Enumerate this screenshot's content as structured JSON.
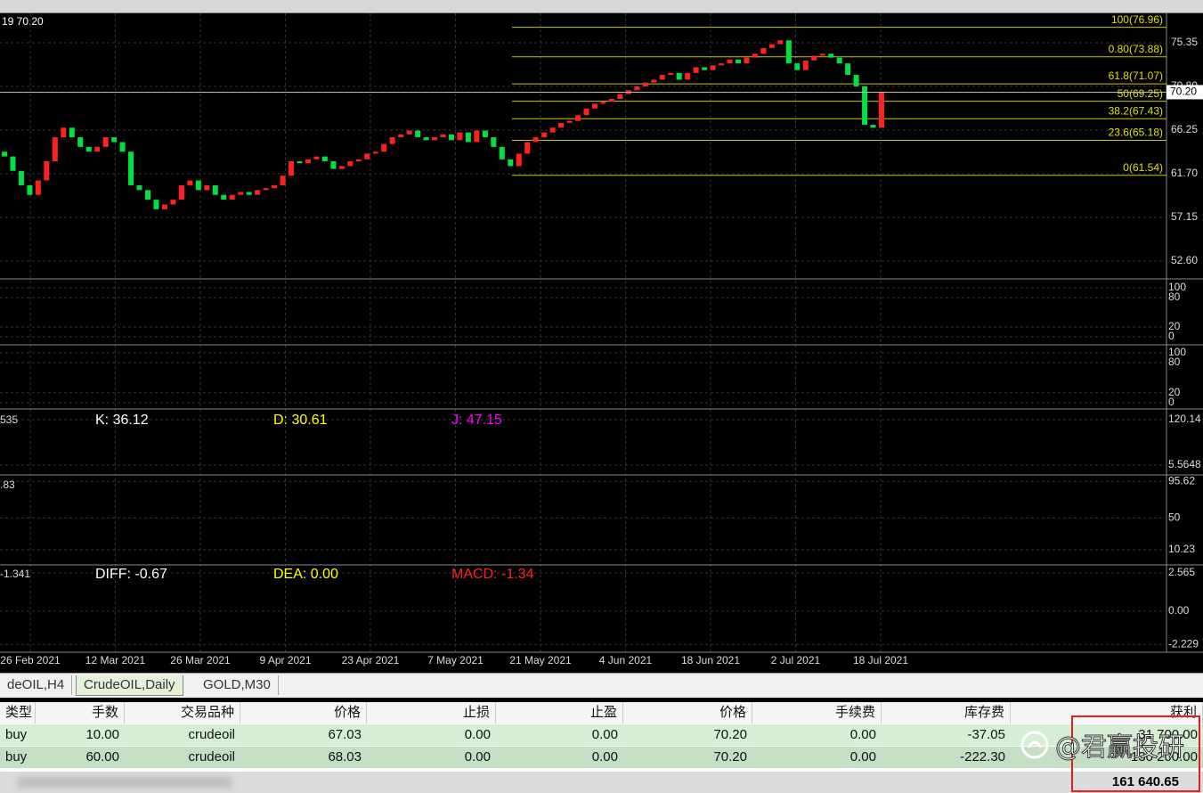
{
  "chart": {
    "corner_text": "19 70.20",
    "current_price": {
      "value": 70.2,
      "label": "70.20"
    },
    "ylim": [
      50.84,
      78.41
    ],
    "price_ticks": [
      75.35,
      {
        "value": 70.8,
        "label": "70.80"
      },
      66.25,
      {
        "value": 61.7,
        "label": "61.70"
      },
      57.15,
      {
        "value": 52.6,
        "label": "52.60"
      }
    ],
    "fibonacci": [
      {
        "label": "100(76.96)",
        "price": 76.96
      },
      {
        "label": "0.80(73.88)",
        "price": 73.88
      },
      {
        "label": "61.8(71.07)",
        "price": 71.07
      },
      {
        "label": "50(69.25)",
        "price": 69.25
      },
      {
        "label": "38.2(67.43)",
        "price": 67.43
      },
      {
        "label": "23.6(65.18)",
        "price": 65.18
      },
      {
        "label": "0(61.54)",
        "price": 61.54
      }
    ],
    "first_open": 64,
    "closes": [
      63.5,
      62.0,
      60.5,
      59.5,
      61,
      63,
      65.5,
      66.5,
      65.5,
      64.5,
      64,
      64.5,
      65.5,
      65,
      64,
      60.5,
      60,
      59,
      58,
      58.5,
      59,
      60.5,
      61,
      60,
      60.5,
      59.5,
      59,
      59.5,
      59.8,
      59.5,
      60,
      60.2,
      60.5,
      61.5,
      63,
      62.8,
      63.2,
      63.5,
      63,
      62.2,
      62.5,
      63,
      63.2,
      63.8,
      64,
      64.8,
      65.5,
      65.8,
      66.2,
      65.5,
      65.2,
      65.5,
      65.8,
      65.2,
      66,
      65,
      66.2,
      65.5,
      64.5,
      63.2,
      62.5,
      63.8,
      65,
      65.5,
      66,
      66.5,
      67,
      67.2,
      67.8,
      68.5,
      69,
      69.2,
      69.5,
      70,
      70.4,
      70.8,
      71.2,
      71.5,
      72,
      72.2,
      71.5,
      72.2,
      72.8,
      72.5,
      73,
      73.2,
      73.6,
      73.2,
      73.8,
      74.2,
      74.8,
      75.2,
      75.6,
      73.2,
      72.5,
      73.5,
      74,
      74.2,
      73.8,
      73.2,
      72,
      70.8,
      66.8,
      66.5,
      70.2
    ],
    "dates": [
      "26 Feb 2021",
      "12 Mar 2021",
      "26 Mar 2021",
      "9 Apr 2021",
      "23 Apr 2021",
      "7 May 2021",
      "21 May 2021",
      "4 Jun 2021",
      "18 Jun 2021",
      "2 Jul 2021",
      "18 Jul 2021"
    ],
    "panels": [
      {
        "ylim": [
          -12.7,
          114.5
        ],
        "ticks": [
          100,
          80,
          20,
          0
        ]
      },
      {
        "ylim": [
          -9,
          114
        ],
        "ticks": [
          100,
          80,
          20,
          0
        ]
      },
      {
        "ylim": [
          -14.5,
          140.4
        ],
        "ticks": [
          120.14,
          5.5648
        ],
        "corner_text": "535",
        "legend": [
          {
            "text": "K:  36.12",
            "color": "#ffffff"
          },
          {
            "text": "D:  30.61",
            "color": "#ffff00"
          },
          {
            "text": "J:  47.15",
            "color": "#ff00ff"
          }
        ]
      },
      {
        "ylim": [
          -6.4,
          101.4
        ],
        "ticks": [
          95.62,
          50,
          10.23
        ],
        "corner_text": ".83"
      },
      {
        "ylim": [
          -2.63,
          3.04
        ],
        "ticks": [
          2.565,
          {
            "value": 0,
            "label": "0.00"
          },
          -2.229
        ],
        "corner_text": "-1.341",
        "legend": [
          {
            "text": "DIFF:  -0.67",
            "color": "#ffffff"
          },
          {
            "text": "DEA:  0.00",
            "color": "#ffff00"
          },
          {
            "text": "MACD:  -1.34",
            "color": "#ff2020"
          }
        ]
      }
    ]
  },
  "tabs": [
    "deOIL,H4",
    "CrudeOIL,Daily",
    "GOLD,M30"
  ],
  "table": {
    "header": [
      "类型",
      "手数",
      "交易品种",
      "价格",
      "止损",
      "止盈",
      "价格",
      "手续费",
      "库存费",
      "获利"
    ],
    "rows": [
      [
        "buy",
        "10.00",
        "crudeoil",
        "67.03",
        "0.00",
        "0.00",
        "70.20",
        "0.00",
        "-37.05",
        "31 700.00"
      ],
      [
        "buy",
        "60.00",
        "crudeoil",
        "68.03",
        "0.00",
        "0.00",
        "70.20",
        "0.00",
        "-222.30",
        "130 200.00"
      ]
    ],
    "total": "161 640.65"
  },
  "watermark": "@君赢投研"
}
